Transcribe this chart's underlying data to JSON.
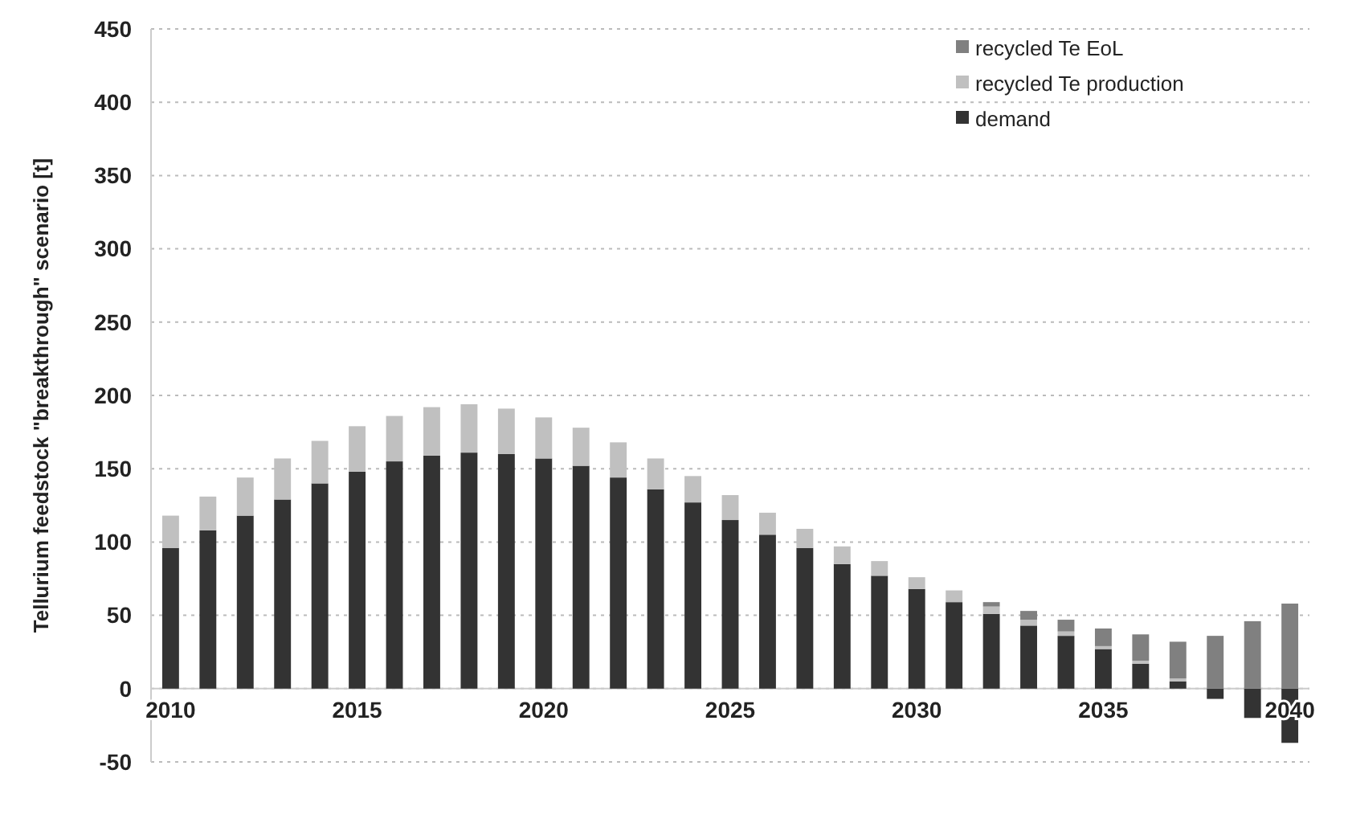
{
  "chart_data": {
    "type": "bar",
    "stacked": true,
    "ylabel": "Tellurium feedstock \"breakthrough\" scenario [t]",
    "categories": [
      "2010",
      null,
      null,
      null,
      null,
      "2015",
      null,
      null,
      null,
      null,
      "2020",
      null,
      null,
      null,
      null,
      "2025",
      null,
      null,
      null,
      null,
      "2030",
      null,
      null,
      null,
      null,
      "2035",
      null,
      null,
      null,
      null,
      "2040"
    ],
    "series": [
      {
        "name": "demand",
        "color": "#333333",
        "values": [
          96,
          108,
          118,
          129,
          140,
          148,
          155,
          159,
          161,
          160,
          157,
          152,
          144,
          136,
          127,
          115,
          105,
          96,
          85,
          77,
          68,
          59,
          51,
          43,
          36,
          27,
          17,
          5,
          -7,
          -20,
          -37
        ]
      },
      {
        "name": "recycled Te production",
        "color": "#c0c0c0",
        "values": [
          22,
          23,
          26,
          28,
          29,
          31,
          31,
          33,
          33,
          31,
          28,
          26,
          24,
          21,
          18,
          17,
          15,
          13,
          12,
          10,
          8,
          8,
          5,
          4,
          3,
          2,
          2,
          2,
          0,
          0,
          0
        ]
      },
      {
        "name": "recycled Te EoL",
        "color": "#808080",
        "values": [
          0,
          0,
          0,
          0,
          0,
          0,
          0,
          0,
          0,
          0,
          0,
          0,
          0,
          0,
          0,
          0,
          0,
          0,
          0,
          0,
          0,
          0,
          3,
          6,
          8,
          12,
          18,
          25,
          36,
          46,
          58
        ]
      }
    ],
    "ylim": [
      -50,
      450
    ],
    "yticks": [
      -50,
      0,
      50,
      100,
      150,
      200,
      250,
      300,
      350,
      400,
      450
    ],
    "grid": "y",
    "legend": "top right"
  }
}
